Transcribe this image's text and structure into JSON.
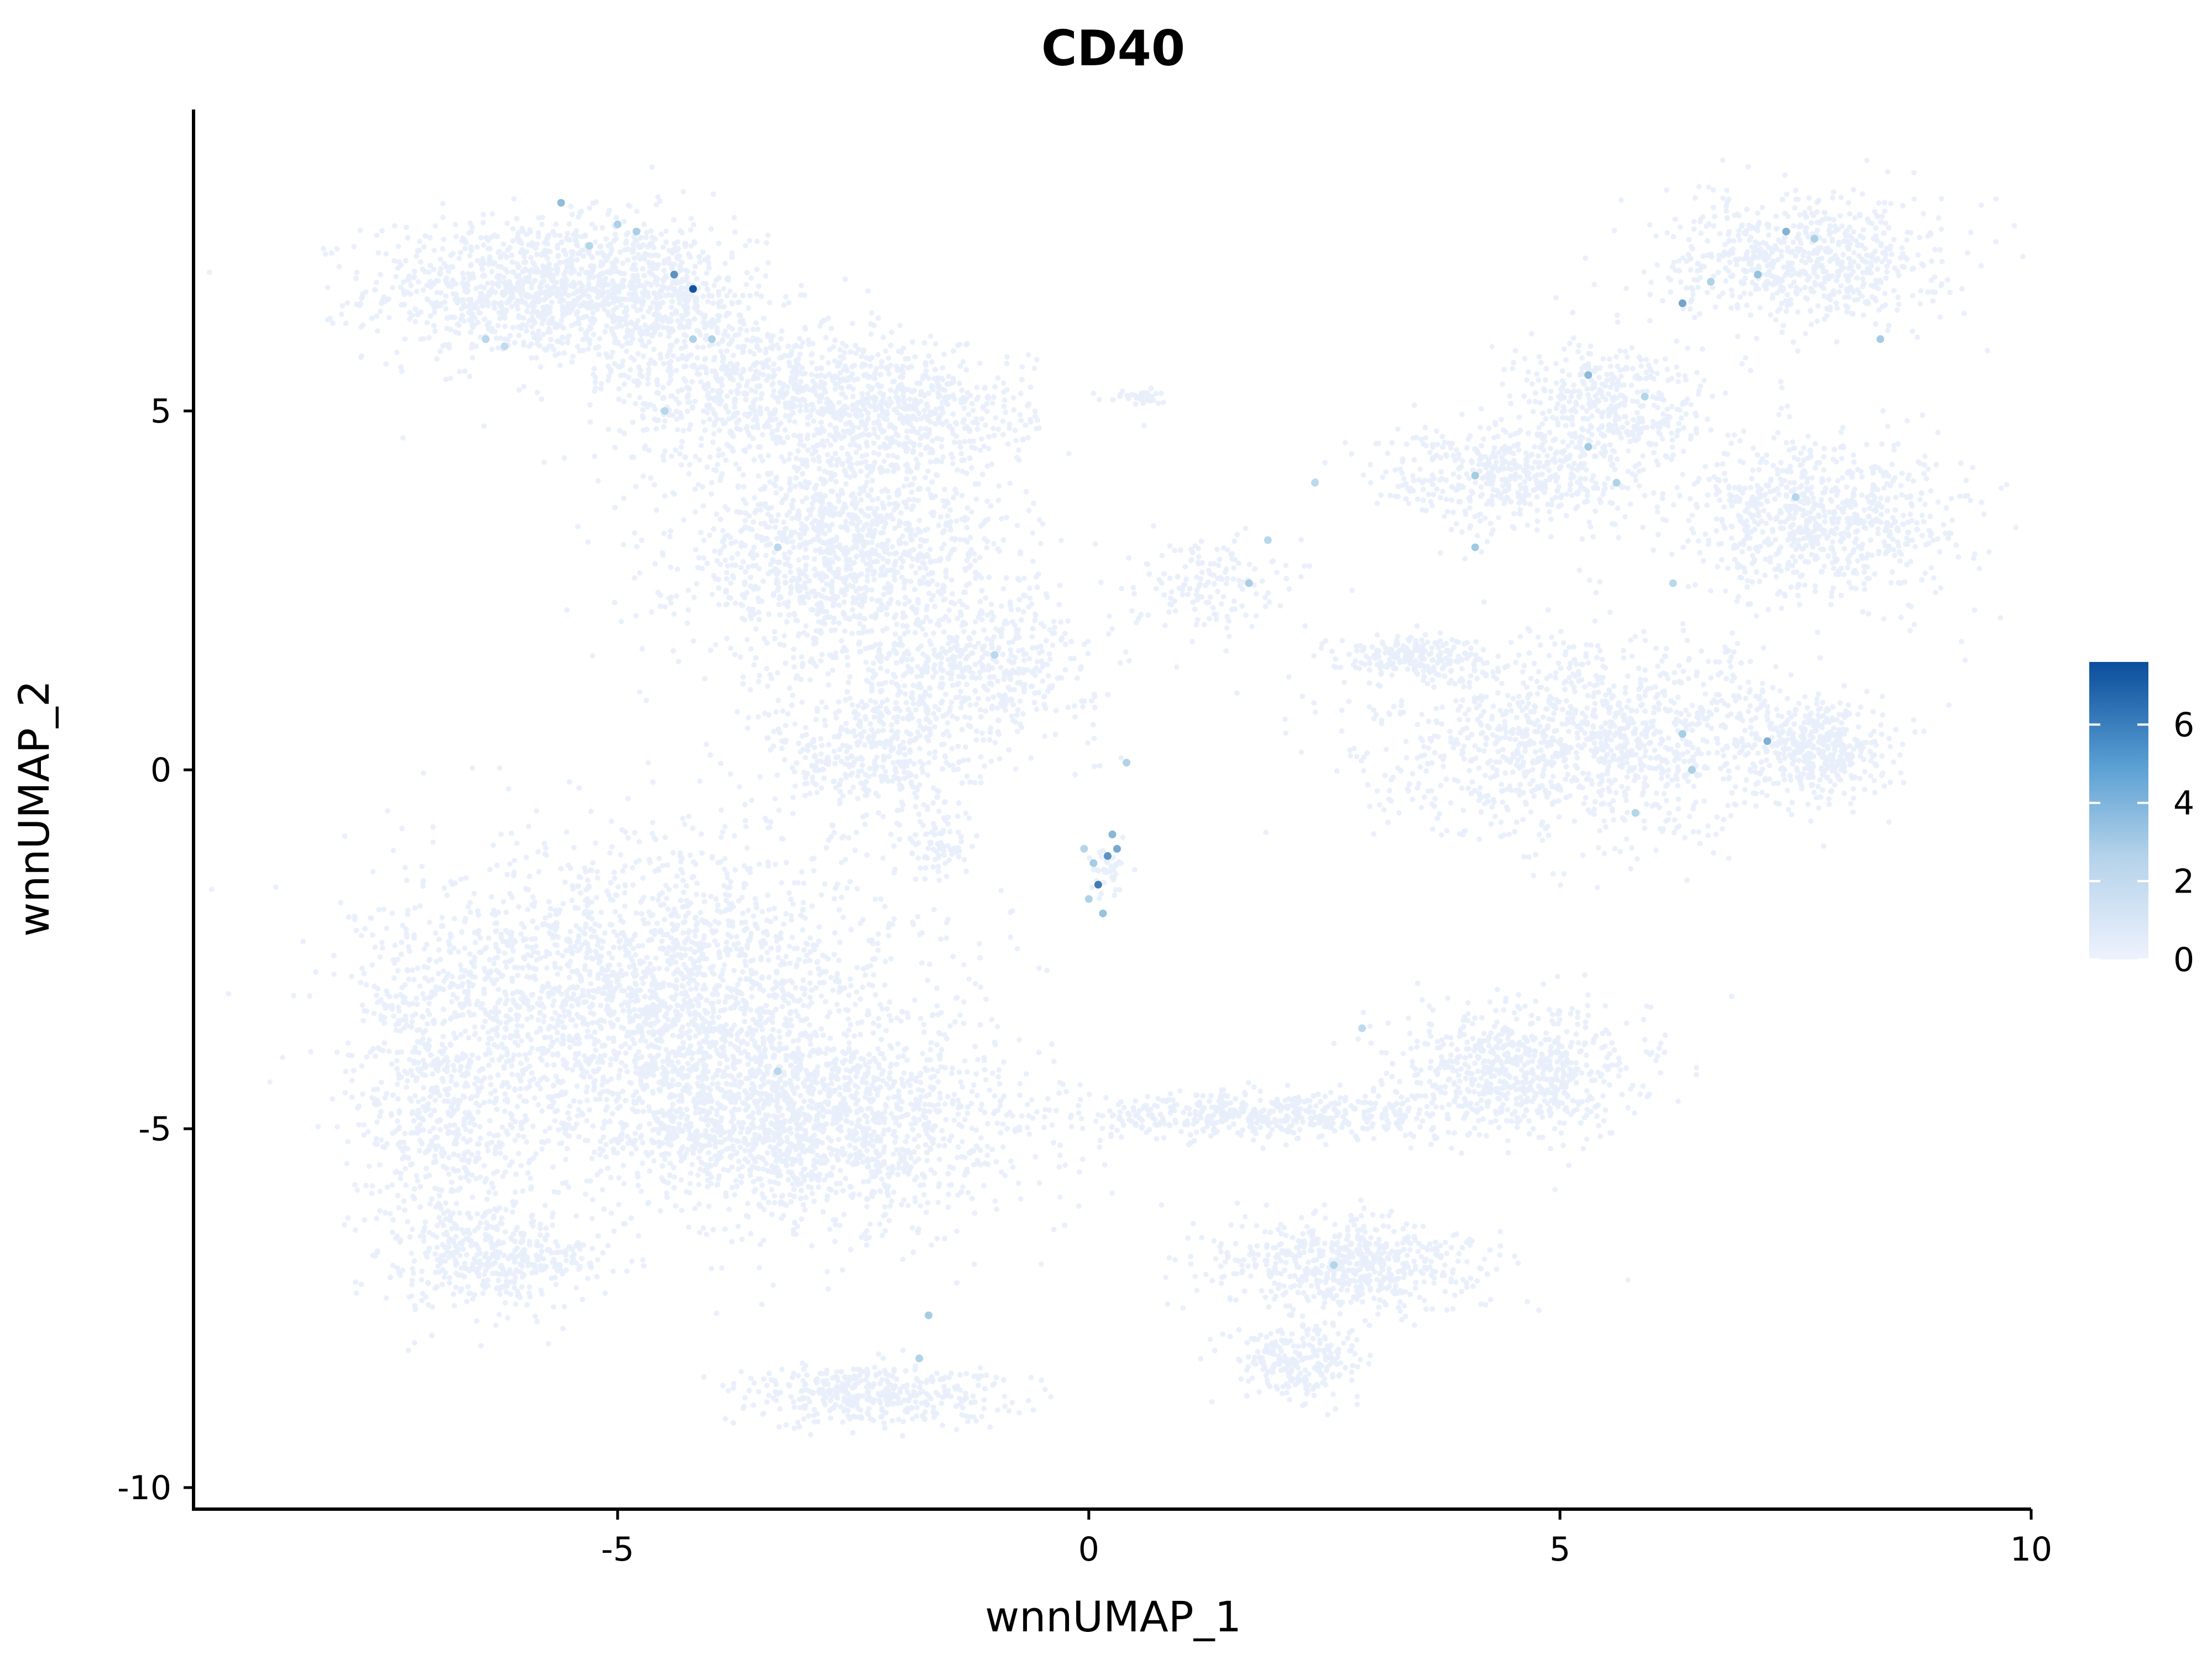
{
  "chart_data": {
    "type": "scatter",
    "title": "CD40",
    "xlabel": "wnnUMAP_1",
    "ylabel": "wnnUMAP_2",
    "xlim": [
      -9.5,
      10
    ],
    "ylim": [
      -10.3,
      9.2
    ],
    "x_ticks": [
      {
        "value": -5,
        "label": "-5"
      },
      {
        "value": 0,
        "label": "0"
      },
      {
        "value": 5,
        "label": "5"
      },
      {
        "value": 10,
        "label": "10"
      }
    ],
    "y_ticks": [
      {
        "value": -10,
        "label": "-10"
      },
      {
        "value": -5,
        "label": "-5"
      },
      {
        "value": 0,
        "label": "0"
      },
      {
        "value": 5,
        "label": "5"
      }
    ],
    "grid": false,
    "legend": {
      "position": "right",
      "type": "continuous colorbar",
      "range": [
        0,
        7.6
      ],
      "ticks": [
        {
          "value": 0,
          "label": "0"
        },
        {
          "value": 2,
          "label": "2"
        },
        {
          "value": 4,
          "label": "4"
        },
        {
          "value": 6,
          "label": "6"
        }
      ]
    },
    "color_scale": {
      "low": "#eef2fd",
      "mid": "#9ecae1",
      "high": "#0b4d9c"
    },
    "clusters": [
      {
        "cx": -6.0,
        "cy": 6.7,
        "rx": 1.5,
        "ry": 0.9,
        "n": 900
      },
      {
        "cx": -4.7,
        "cy": 6.6,
        "rx": 1.2,
        "ry": 1.0,
        "n": 600
      },
      {
        "cx": -3.5,
        "cy": 5.3,
        "rx": 1.4,
        "ry": 1.0,
        "n": 700
      },
      {
        "cx": -2.6,
        "cy": 3.0,
        "rx": 1.6,
        "ry": 1.5,
        "n": 1400
      },
      {
        "cx": -1.9,
        "cy": 5.0,
        "rx": 1.2,
        "ry": 0.8,
        "n": 500
      },
      {
        "cx": -1.2,
        "cy": 1.4,
        "rx": 1.2,
        "ry": 0.9,
        "n": 500
      },
      {
        "cx": -2.3,
        "cy": 0.2,
        "rx": 1.0,
        "ry": 0.9,
        "n": 400
      },
      {
        "cx": -1.6,
        "cy": -1.0,
        "rx": 0.3,
        "ry": 0.5,
        "n": 80
      },
      {
        "cx": 0.6,
        "cy": 5.2,
        "rx": 0.2,
        "ry": 0.1,
        "n": 40
      },
      {
        "cx": 1.2,
        "cy": 2.6,
        "rx": 0.7,
        "ry": 0.6,
        "n": 150
      },
      {
        "cx": 3.4,
        "cy": 1.6,
        "rx": 0.8,
        "ry": 0.25,
        "n": 200
      },
      {
        "cx": 4.5,
        "cy": 4.1,
        "rx": 1.3,
        "ry": 0.7,
        "n": 500
      },
      {
        "cx": 5.6,
        "cy": 5.1,
        "rx": 1.0,
        "ry": 0.8,
        "n": 400
      },
      {
        "cx": 7.6,
        "cy": 7.1,
        "rx": 1.3,
        "ry": 0.8,
        "n": 700
      },
      {
        "cx": 7.8,
        "cy": 3.5,
        "rx": 1.4,
        "ry": 1.0,
        "n": 800
      },
      {
        "cx": 5.4,
        "cy": 0.4,
        "rx": 2.2,
        "ry": 1.2,
        "n": 1300
      },
      {
        "cx": 7.8,
        "cy": 0.3,
        "rx": 0.6,
        "ry": 0.6,
        "n": 350
      },
      {
        "cx": -4.5,
        "cy": -3.2,
        "rx": 2.4,
        "ry": 2.0,
        "n": 2400
      },
      {
        "cx": -3.0,
        "cy": -5.0,
        "rx": 2.2,
        "ry": 1.3,
        "n": 1600
      },
      {
        "cx": -6.8,
        "cy": -4.5,
        "rx": 0.9,
        "ry": 2.2,
        "n": 700
      },
      {
        "cx": -6.3,
        "cy": -6.8,
        "rx": 1.0,
        "ry": 0.6,
        "n": 400
      },
      {
        "cx": -2.3,
        "cy": -8.7,
        "rx": 1.3,
        "ry": 0.4,
        "n": 400
      },
      {
        "cx": 4.6,
        "cy": -4.2,
        "rx": 1.2,
        "ry": 0.8,
        "n": 700
      },
      {
        "cx": 1.8,
        "cy": -4.8,
        "rx": 1.8,
        "ry": 0.3,
        "n": 500
      },
      {
        "cx": 2.7,
        "cy": -6.9,
        "rx": 1.3,
        "ry": 0.6,
        "n": 600
      },
      {
        "cx": 2.2,
        "cy": -8.2,
        "rx": 0.6,
        "ry": 0.5,
        "n": 250
      },
      {
        "cx": 0.2,
        "cy": -1.4,
        "rx": 0.2,
        "ry": 0.35,
        "n": 40
      }
    ],
    "high_expression_points": [
      {
        "x": 0.2,
        "y": -1.2,
        "v": 5.5
      },
      {
        "x": 0.3,
        "y": -1.1,
        "v": 4.8
      },
      {
        "x": 0.1,
        "y": -1.6,
        "v": 6.2
      },
      {
        "x": 0.05,
        "y": -1.3,
        "v": 3.5
      },
      {
        "x": 0.15,
        "y": -2.0,
        "v": 4.0
      },
      {
        "x": 0.0,
        "y": -1.8,
        "v": 3.0
      },
      {
        "x": 0.25,
        "y": -0.9,
        "v": 4.4
      },
      {
        "x": -0.05,
        "y": -1.1,
        "v": 2.8
      },
      {
        "x": 0.4,
        "y": 0.1,
        "v": 3.0
      },
      {
        "x": -4.2,
        "y": 6.7,
        "v": 7.4
      },
      {
        "x": -4.4,
        "y": 6.9,
        "v": 5.5
      },
      {
        "x": -5.6,
        "y": 7.9,
        "v": 4.2
      },
      {
        "x": -5.0,
        "y": 7.6,
        "v": 3.1
      },
      {
        "x": -5.3,
        "y": 7.3,
        "v": 2.8
      },
      {
        "x": -6.4,
        "y": 6.0,
        "v": 2.5
      },
      {
        "x": -4.8,
        "y": 7.5,
        "v": 3.3
      },
      {
        "x": -4.5,
        "y": 5.0,
        "v": 2.6
      },
      {
        "x": -4.0,
        "y": 6.0,
        "v": 3.0
      },
      {
        "x": -6.2,
        "y": 5.9,
        "v": 2.2
      },
      {
        "x": 6.3,
        "y": 6.5,
        "v": 5.0
      },
      {
        "x": 7.4,
        "y": 7.5,
        "v": 4.5
      },
      {
        "x": 7.1,
        "y": 6.9,
        "v": 4.0
      },
      {
        "x": 8.4,
        "y": 6.0,
        "v": 3.5
      },
      {
        "x": 6.6,
        "y": 6.8,
        "v": 3.0
      },
      {
        "x": 7.7,
        "y": 7.4,
        "v": 3.2
      },
      {
        "x": 5.3,
        "y": 5.5,
        "v": 4.3
      },
      {
        "x": 5.3,
        "y": 4.5,
        "v": 3.7
      },
      {
        "x": 4.1,
        "y": 4.1,
        "v": 3.5
      },
      {
        "x": 4.1,
        "y": 3.1,
        "v": 3.8
      },
      {
        "x": 5.6,
        "y": 4.0,
        "v": 3.0
      },
      {
        "x": 5.9,
        "y": 5.2,
        "v": 2.8
      },
      {
        "x": 7.2,
        "y": 0.4,
        "v": 4.6
      },
      {
        "x": 6.3,
        "y": 0.5,
        "v": 3.4
      },
      {
        "x": 6.4,
        "y": 0.0,
        "v": 3.2
      },
      {
        "x": 5.8,
        "y": -0.6,
        "v": 2.8
      },
      {
        "x": 7.5,
        "y": 3.8,
        "v": 2.7
      },
      {
        "x": 6.2,
        "y": 2.6,
        "v": 2.5
      },
      {
        "x": 1.7,
        "y": 2.6,
        "v": 3.3
      },
      {
        "x": 1.9,
        "y": 3.2,
        "v": 2.6
      },
      {
        "x": 2.4,
        "y": 4.0,
        "v": 2.4
      },
      {
        "x": -1.7,
        "y": -7.6,
        "v": 3.5
      },
      {
        "x": -1.8,
        "y": -8.2,
        "v": 2.9
      },
      {
        "x": -3.3,
        "y": -4.2,
        "v": 2.6
      },
      {
        "x": 2.6,
        "y": -6.9,
        "v": 2.8
      },
      {
        "x": 2.9,
        "y": -3.6,
        "v": 2.3
      },
      {
        "x": -3.3,
        "y": 3.1,
        "v": 2.4
      },
      {
        "x": -1.0,
        "y": 1.6,
        "v": 2.5
      },
      {
        "x": -4.2,
        "y": 6.0,
        "v": 3.0
      }
    ]
  }
}
